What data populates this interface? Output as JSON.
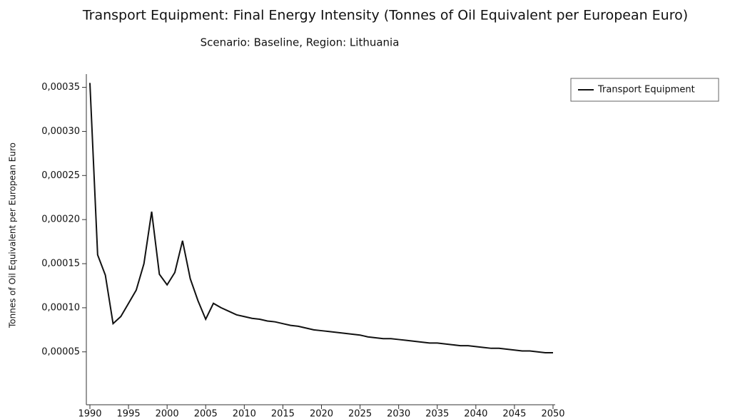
{
  "chart_data": {
    "type": "line",
    "title": "Transport Equipment: Final Energy Intensity (Tonnes of Oil Equivalent per European Euro)",
    "subtitle": "Scenario: Baseline, Region: Lithuania",
    "y_label": "Tonnes of Oil Equivalent per European Euro",
    "x": [
      1990,
      1991,
      1992,
      1993,
      1994,
      1995,
      1996,
      1997,
      1998,
      1999,
      2000,
      2001,
      2002,
      2003,
      2004,
      2005,
      2006,
      2007,
      2008,
      2009,
      2010,
      2011,
      2012,
      2013,
      2014,
      2015,
      2016,
      2017,
      2018,
      2019,
      2020,
      2021,
      2022,
      2023,
      2024,
      2025,
      2026,
      2027,
      2028,
      2029,
      2030,
      2031,
      2032,
      2033,
      2034,
      2035,
      2036,
      2037,
      2038,
      2039,
      2040,
      2041,
      2042,
      2043,
      2044,
      2045,
      2046,
      2047,
      2048,
      2049,
      2050
    ],
    "series": [
      {
        "name": "Transport Equipment",
        "color": "#111111",
        "values": [
          0.000355,
          0.00016,
          0.000137,
          8.2e-05,
          9e-05,
          0.000105,
          0.00012,
          0.00015,
          0.000209,
          0.000138,
          0.000126,
          0.00014,
          0.000176,
          0.000133,
          0.000108,
          8.7e-05,
          0.000105,
          0.0001,
          9.6e-05,
          9.2e-05,
          9e-05,
          8.8e-05,
          8.7e-05,
          8.5e-05,
          8.4e-05,
          8.2e-05,
          8e-05,
          7.9e-05,
          7.7e-05,
          7.5e-05,
          7.4e-05,
          7.3e-05,
          7.2e-05,
          7.1e-05,
          7e-05,
          6.9e-05,
          6.7e-05,
          6.6e-05,
          6.5e-05,
          6.5e-05,
          6.4e-05,
          6.3e-05,
          6.2e-05,
          6.1e-05,
          6e-05,
          6e-05,
          5.9e-05,
          5.8e-05,
          5.7e-05,
          5.7e-05,
          5.6e-05,
          5.5e-05,
          5.4e-05,
          5.4e-05,
          5.3e-05,
          5.2e-05,
          5.1e-05,
          5.1e-05,
          5e-05,
          4.9e-05,
          4.9e-05
        ]
      }
    ],
    "xlim": [
      1990,
      2050
    ],
    "xticks": [
      1990,
      1995,
      2000,
      2005,
      2010,
      2015,
      2020,
      2025,
      2030,
      2035,
      2040,
      2045,
      2050
    ],
    "ylim": [
      -1e-05,
      0.000365
    ],
    "yticks": [
      {
        "value": 5e-05,
        "label": "0,00005"
      },
      {
        "value": 0.0001,
        "label": "0,00010"
      },
      {
        "value": 0.00015,
        "label": "0,00015"
      },
      {
        "value": 0.0002,
        "label": "0,00020"
      },
      {
        "value": 0.00025,
        "label": "0,00025"
      },
      {
        "value": 0.0003,
        "label": "0,00030"
      },
      {
        "value": 0.00035,
        "label": "0,00035"
      }
    ],
    "legend": "top-right"
  }
}
